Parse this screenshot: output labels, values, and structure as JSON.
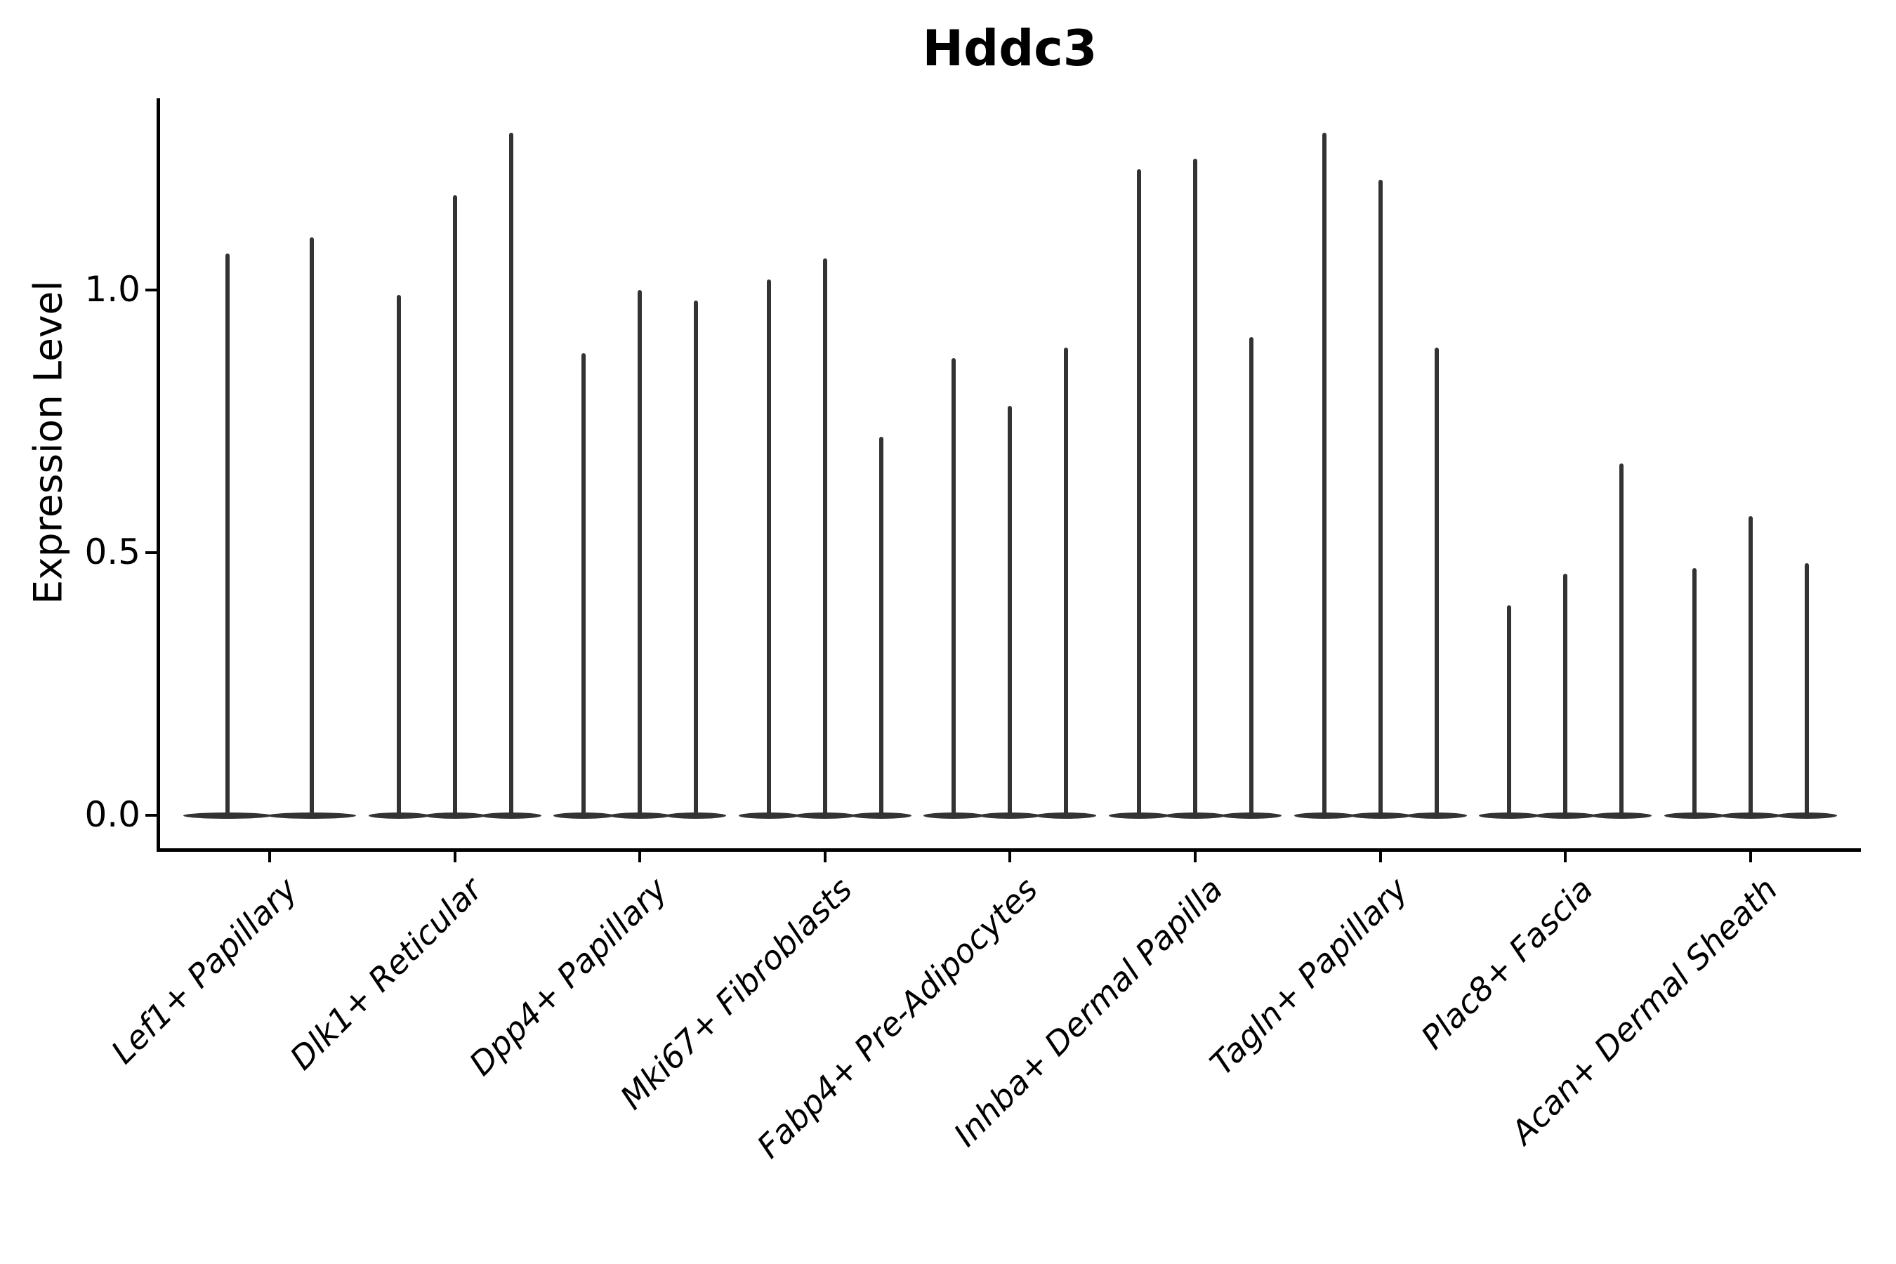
{
  "chart_data": {
    "type": "violin",
    "title": "Hddc3",
    "ylabel": "Expression Level",
    "xlabel": "",
    "categories": [
      "Lef1+ Papillary",
      "Dlk1+ Reticular",
      "Dpp4+ Papillary",
      "Mki67+ Fibroblasts",
      "Fabp4+ Pre-Adipocytes",
      "Inhba+ Dermal Papilla",
      "Tagln+ Papillary",
      "Plac8+ Fascia",
      "Acan+ Dermal Sheath"
    ],
    "series": [
      {
        "category": "Lef1+ Papillary",
        "violin_maxima": [
          1.07,
          1.1
        ]
      },
      {
        "category": "Dlk1+ Reticular",
        "violin_maxima": [
          0.99,
          1.18,
          1.3
        ]
      },
      {
        "category": "Dpp4+ Papillary",
        "violin_maxima": [
          0.88,
          1.0,
          0.98
        ]
      },
      {
        "category": "Mki67+ Fibroblasts",
        "violin_maxima": [
          1.02,
          1.06,
          0.72
        ]
      },
      {
        "category": "Fabp4+ Pre-Adipocytes",
        "violin_maxima": [
          0.87,
          0.78,
          0.89
        ]
      },
      {
        "category": "Inhba+ Dermal Papilla",
        "violin_maxima": [
          1.23,
          1.25,
          0.91
        ]
      },
      {
        "category": "Tagln+ Papillary",
        "violin_maxima": [
          1.3,
          1.21,
          0.89
        ]
      },
      {
        "category": "Plac8+ Fascia",
        "violin_maxima": [
          0.4,
          0.46,
          0.67
        ]
      },
      {
        "category": "Acan+ Dermal Sheath",
        "violin_maxima": [
          0.47,
          0.57,
          0.48
        ]
      }
    ],
    "baseline_value": 0.0,
    "ytick_labels": [
      "0.0",
      "0.5",
      "1.0"
    ],
    "ytick_values": [
      0.0,
      0.5,
      1.0
    ],
    "ylim": [
      -0.07,
      1.37
    ],
    "grid": false,
    "legend": false,
    "violin_style": "thin vertical spikes with flat density bulge at zero"
  },
  "colors": {
    "violin": "#333333",
    "axis": "#000000",
    "text": "#000000",
    "background": "#ffffff"
  }
}
